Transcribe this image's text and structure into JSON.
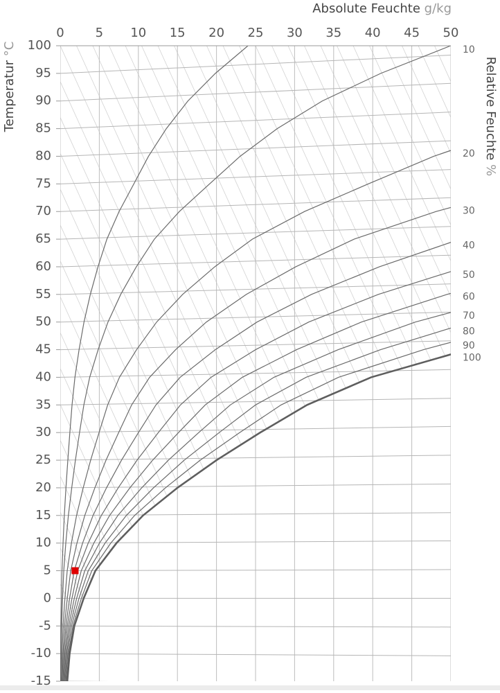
{
  "chart_data": {
    "type": "line",
    "x_label": "Absolute Feuchte",
    "x_unit": "g/kg",
    "y_label": "Temperatur",
    "y_unit": "°C",
    "y2_label": "Relative Feuchte",
    "y2_unit": "%",
    "xlim": [
      0,
      50
    ],
    "xticks": [
      0,
      5,
      10,
      15,
      20,
      25,
      30,
      35,
      40,
      45,
      50
    ],
    "ylim": [
      -15,
      100
    ],
    "yticks": [
      -15,
      -10,
      -5,
      0,
      5,
      10,
      15,
      20,
      25,
      30,
      35,
      40,
      45,
      50,
      55,
      60,
      65,
      70,
      75,
      80,
      85,
      90,
      95,
      100
    ],
    "isotherm_ends": [
      -15.5,
      -10.4,
      -5.2,
      0,
      5.2,
      10.4,
      15.5,
      20.7,
      25.9,
      31.1,
      36.2,
      41.4,
      46.6,
      51.8,
      56.9,
      62.1,
      67.3,
      72.5,
      77.6,
      82.8,
      88,
      93.2,
      98.3,
      103.5
    ],
    "grid": true,
    "y": [
      -15,
      -10,
      -5,
      0,
      5,
      10,
      15,
      20,
      25,
      30,
      35,
      40,
      45,
      50,
      55,
      60,
      65,
      70,
      75,
      80,
      85,
      90,
      95,
      100
    ],
    "series": [
      {
        "name": null,
        "color": "#6a6a6a",
        "width": 1.2,
        "x": [
          0.04,
          0.06,
          0.09,
          0.15,
          0.22,
          0.36,
          0.52,
          0.73,
          0.97,
          1.23,
          1.51,
          1.88,
          2.41,
          3.04,
          3.85,
          4.83,
          5.97,
          7.53,
          9.42,
          11.3,
          13.58,
          16.34,
          19.86,
          24.03
        ]
      },
      {
        "name": "10",
        "color": "#6a6a6a",
        "width": 1.2,
        "x": [
          0.09,
          0.12,
          0.18,
          0.3,
          0.45,
          0.71,
          1.04,
          1.47,
          1.94,
          2.47,
          3.02,
          3.77,
          4.85,
          6.11,
          7.74,
          9.74,
          12.05,
          15.25,
          19.12,
          23.03,
          27.77,
          33.54,
          41.03,
          49.98
        ]
      },
      {
        "name": "20",
        "color": "#6a6a6a",
        "width": 1.2,
        "x": [
          0.18,
          0.24,
          0.36,
          0.6,
          0.89,
          1.43,
          2.09,
          2.94,
          3.89,
          4.97,
          6.07,
          7.58,
          9.77,
          12.34,
          15.67,
          19.78,
          24.59,
          31.27,
          39.44,
          47.83,
          58.1,
          null,
          null,
          null
        ]
      },
      {
        "name": "30",
        "color": "#6a6a6a",
        "width": 1.2,
        "x": [
          0.27,
          0.36,
          0.54,
          0.9,
          1.34,
          2.14,
          3.14,
          4.43,
          5.86,
          7.48,
          9.14,
          11.44,
          14.77,
          18.7,
          23.81,
          30.15,
          37.62,
          48.11,
          61.1,
          null,
          null,
          null,
          null,
          null
        ]
      },
      {
        "name": "40",
        "color": "#6a6a6a",
        "width": 1.2,
        "x": [
          0.36,
          0.48,
          0.72,
          1.2,
          1.79,
          2.86,
          4.2,
          5.92,
          7.84,
          10.01,
          12.25,
          15.35,
          19.85,
          25.19,
          32.16,
          40.86,
          51.19,
          null,
          null,
          null,
          null,
          null,
          null,
          null
        ]
      },
      {
        "name": "50",
        "color": "#6a6a6a",
        "width": 1.2,
        "x": [
          0.45,
          0.6,
          0.9,
          1.5,
          2.24,
          3.58,
          5.26,
          7.42,
          9.83,
          12.56,
          15.39,
          19.3,
          25.01,
          31.81,
          40.72,
          51.93,
          null,
          null,
          null,
          null,
          null,
          null,
          null,
          null
        ]
      },
      {
        "name": "60",
        "color": "#6a6a6a",
        "width": 1.2,
        "x": [
          0.54,
          0.72,
          1.08,
          1.8,
          2.69,
          4.3,
          6.32,
          8.92,
          11.83,
          15.14,
          18.56,
          23.31,
          30.25,
          38.56,
          49.51,
          63.4,
          null,
          null,
          null,
          null,
          null,
          null,
          null,
          null
        ]
      },
      {
        "name": "70",
        "color": "#6a6a6a",
        "width": 1.2,
        "x": [
          0.63,
          0.84,
          1.26,
          2.1,
          3.14,
          5.02,
          7.38,
          10.43,
          13.84,
          17.73,
          21.77,
          27.36,
          35.58,
          45.46,
          58.5,
          null,
          null,
          null,
          null,
          null,
          null,
          null,
          null,
          null
        ]
      },
      {
        "name": "80",
        "color": "#6a6a6a",
        "width": 1.2,
        "x": [
          0.72,
          0.96,
          1.44,
          2.4,
          3.59,
          5.74,
          8.46,
          11.94,
          15.87,
          20.35,
          25,
          31.47,
          41,
          52.5,
          null,
          null,
          null,
          null,
          null,
          null,
          null,
          null,
          null,
          null
        ]
      },
      {
        "name": "90",
        "color": "#6a6a6a",
        "width": 1.2,
        "x": [
          0.81,
          1.08,
          1.62,
          2.7,
          4.04,
          6.47,
          9.52,
          13.47,
          17.92,
          22.98,
          28.27,
          35.62,
          46.5,
          59.7,
          null,
          null,
          null,
          null,
          null,
          null,
          null,
          null,
          null,
          null
        ]
      },
      {
        "name": "100",
        "color": "#5e5e5e",
        "width": 2.6,
        "x": [
          0.9,
          1.2,
          1.8,
          3,
          4.5,
          7.2,
          10.6,
          15,
          20,
          25.6,
          31.6,
          39.8,
          52.1,
          null,
          null,
          null,
          null,
          null,
          null,
          null,
          null,
          null,
          null,
          null
        ]
      }
    ],
    "point": {
      "x": 1.9,
      "y": 5,
      "color": "#e00000"
    }
  }
}
